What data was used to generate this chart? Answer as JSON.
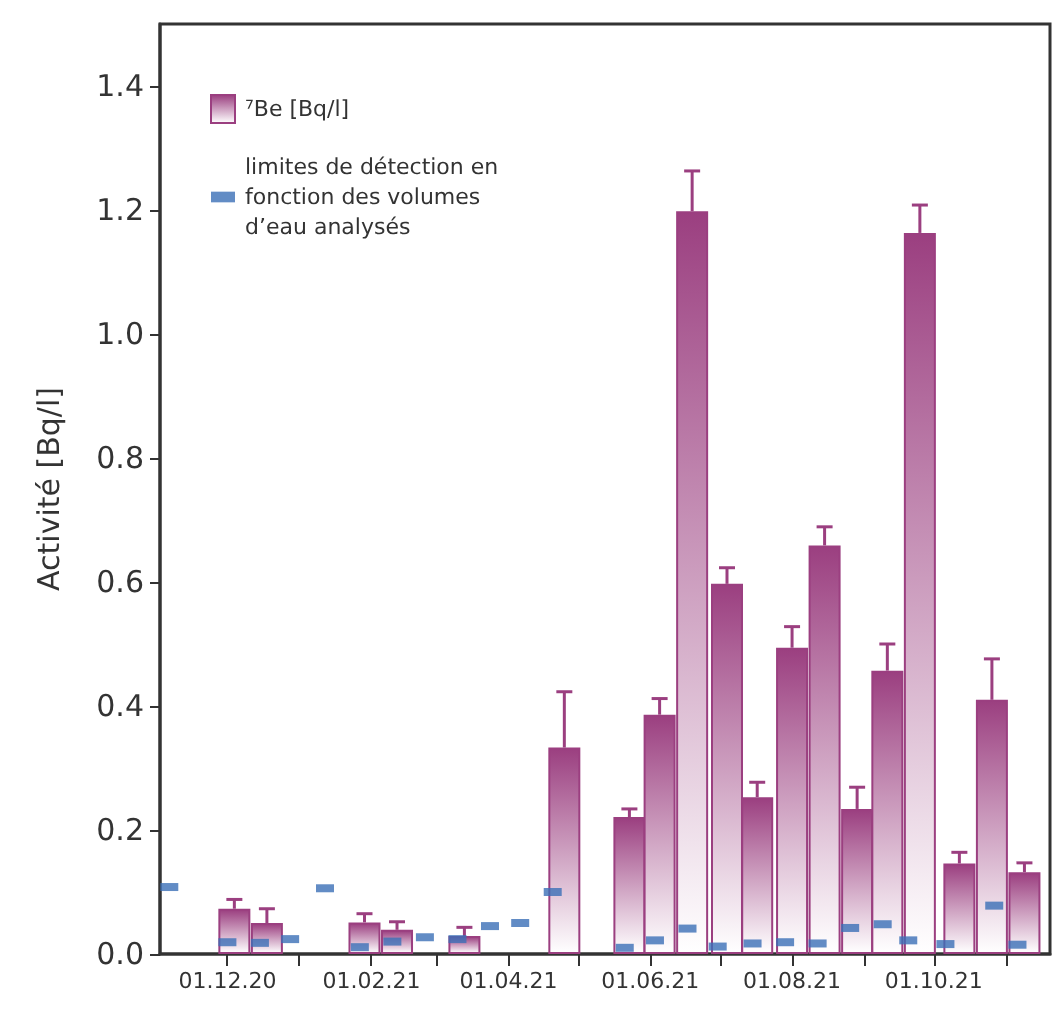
{
  "chart_data": {
    "type": "bar",
    "ylabel": "Activité [Bq/l]",
    "xlim": [
      "2020-11-02",
      "2021-11-20"
    ],
    "xticks": [
      {
        "value": "2020-12-01",
        "label": "01.12.20"
      },
      {
        "value": "2021-01-01",
        "label": null
      },
      {
        "value": "2021-02-01",
        "label": "01.02.21"
      },
      {
        "value": "2021-03-01",
        "label": null
      },
      {
        "value": "2021-04-01",
        "label": "01.04.21"
      },
      {
        "value": "2021-05-01",
        "label": null
      },
      {
        "value": "2021-06-01",
        "label": "01.06.21"
      },
      {
        "value": "2021-07-01",
        "label": null
      },
      {
        "value": "2021-08-01",
        "label": "01.08.21"
      },
      {
        "value": "2021-09-01",
        "label": null
      },
      {
        "value": "2021-10-01",
        "label": "01.10.21"
      },
      {
        "value": "2021-11-01",
        "label": null
      }
    ],
    "ylim": [
      0,
      1.5
    ],
    "yticks": [
      {
        "value": 0,
        "label": "0.0"
      },
      0.2,
      0.4,
      0.6,
      0.8,
      {
        "value": 1,
        "label": "1.0"
      },
      1.2,
      1.4
    ],
    "grid": false,
    "legend": "top left",
    "series": [
      {
        "name": "⁷Be [Bq/l]",
        "color": "#9b3f80",
        "x": [
          "2020-12-04",
          "2020-12-18",
          "2021-01-29",
          "2021-02-12",
          "2021-03-13",
          "2021-04-25",
          "2021-05-23",
          "2021-06-05",
          "2021-06-19",
          "2021-07-04",
          "2021-07-17",
          "2021-08-01",
          "2021-08-15",
          "2021-08-29",
          "2021-09-11",
          "2021-09-25",
          "2021-10-12",
          "2021-10-26",
          "2021-11-09"
        ],
        "values": [
          0.073,
          0.05,
          0.051,
          0.039,
          0.029,
          0.333,
          0.221,
          0.386,
          1.198,
          0.597,
          0.253,
          0.494,
          0.659,
          0.234,
          0.457,
          1.163,
          0.146,
          0.41,
          0.132
        ],
        "errors": [
          0.015,
          0.023,
          0.014,
          0.013,
          0.014,
          0.09,
          0.013,
          0.026,
          0.065,
          0.026,
          0.024,
          0.034,
          0.03,
          0.035,
          0.043,
          0.045,
          0.018,
          0.066,
          0.015
        ]
      },
      {
        "name": "limites de détection en fonction des volumes d’eau analysés",
        "type": "scatter",
        "color": "#3b6fb6",
        "x": [
          "2020-11-06",
          "2020-12-01",
          "2020-12-15",
          "2020-12-28",
          "2021-01-12",
          "2021-01-27",
          "2021-02-10",
          "2021-02-24",
          "2021-03-10",
          "2021-03-24",
          "2021-04-06",
          "2021-04-20",
          "2021-05-21",
          "2021-06-03",
          "2021-06-17",
          "2021-06-30",
          "2021-07-15",
          "2021-07-29",
          "2021-08-12",
          "2021-08-26",
          "2021-09-09",
          "2021-09-20",
          "2021-10-06",
          "2021-10-27",
          "2021-11-06"
        ],
        "values": [
          0.108,
          0.019,
          0.018,
          0.024,
          0.106,
          0.011,
          0.02,
          0.027,
          0.024,
          0.045,
          0.05,
          0.1,
          0.01,
          0.022,
          0.041,
          0.012,
          0.017,
          0.019,
          0.017,
          0.042,
          0.048,
          0.022,
          0.016,
          0.078,
          0.015
        ]
      }
    ]
  }
}
